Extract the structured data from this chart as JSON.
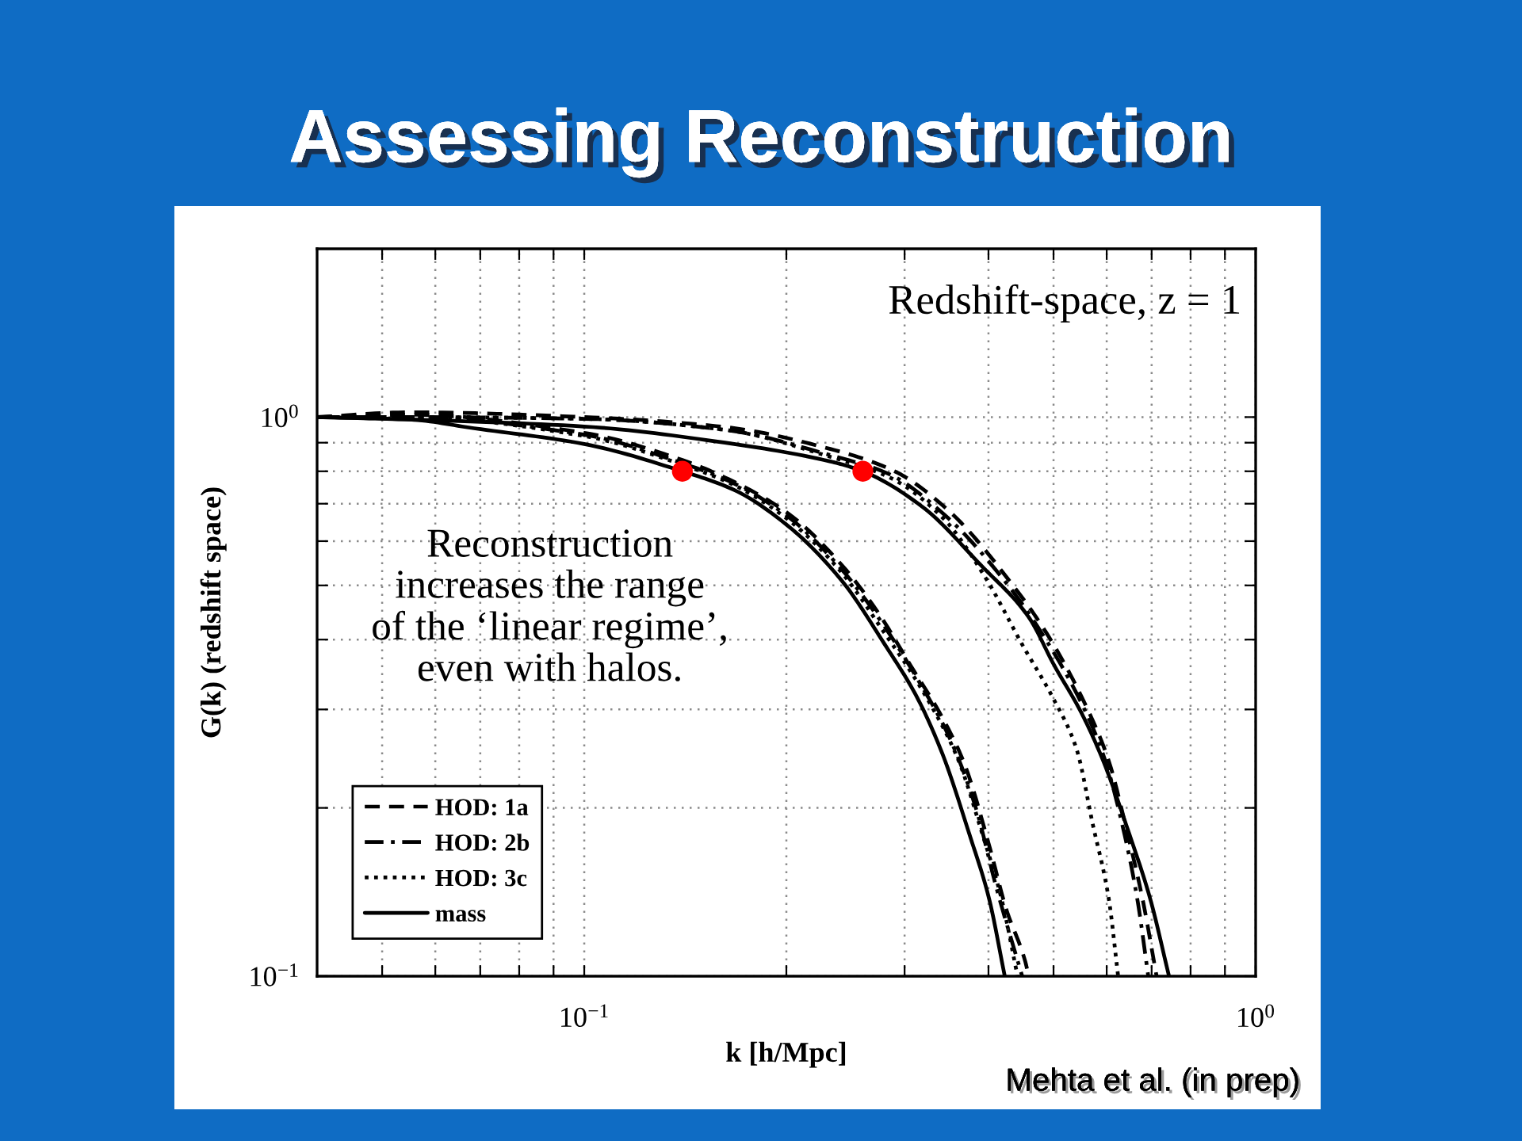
{
  "chart_data": {
    "type": "line",
    "title": "Assessing Reconstruction",
    "xlabel": "k [h/Mpc]",
    "ylabel": "G(k) (redshift space)",
    "log": "xy",
    "xlim": [
      0.04,
      1
    ],
    "ylim": [
      0.1,
      2
    ],
    "xticks": [
      {
        "value": 0.05,
        "label": null
      },
      {
        "value": 0.06,
        "label": null
      },
      {
        "value": 0.07,
        "label": null
      },
      {
        "value": 0.08,
        "label": null
      },
      {
        "value": 0.09,
        "label": null
      },
      {
        "value": 0.1,
        "label": "10$^{−1}$"
      },
      {
        "value": 0.2,
        "label": null
      },
      {
        "value": 0.3,
        "label": null
      },
      {
        "value": 0.4,
        "label": null
      },
      {
        "value": 0.5,
        "label": null
      },
      {
        "value": 0.6,
        "label": null
      },
      {
        "value": 0.7,
        "label": null
      },
      {
        "value": 0.8,
        "label": null
      },
      {
        "value": 0.9,
        "label": null
      },
      {
        "value": 1,
        "label": "10$^{0}$"
      }
    ],
    "yticks": [
      {
        "value": 0.1,
        "label": "10$^{−1}$"
      },
      {
        "value": 0.2,
        "label": null
      },
      {
        "value": 0.3,
        "label": null
      },
      {
        "value": 0.4,
        "label": null
      },
      {
        "value": 0.5,
        "label": null
      },
      {
        "value": 0.6,
        "label": null
      },
      {
        "value": 0.7,
        "label": null
      },
      {
        "value": 0.8,
        "label": null
      },
      {
        "value": 0.9,
        "label": null
      },
      {
        "value": 1,
        "label": "10$^{0}$"
      }
    ],
    "grid": true,
    "legend": "bottom left",
    "series": [
      {
        "name": "HOD: 1a",
        "color": "#000000",
        "line_style": "dashed",
        "x": [
          0.04,
          0.055,
          0.1,
          0.14,
          0.1675,
          0.2017,
          0.2418,
          0.274,
          0.306,
          0.3415,
          0.3687,
          0.4006,
          0.425,
          0.454,
          0.459
        ],
        "values": [
          1.0,
          1.01,
          0.937,
          0.838,
          0.765,
          0.671,
          0.544,
          0.447,
          0.36,
          0.29,
          0.239,
          0.172,
          0.132,
          0.106,
          0.1
        ]
      },
      {
        "name": "HOD: 2b",
        "color": "#000000",
        "line_style": "dashdot",
        "x": [
          0.04,
          0.055,
          0.1,
          0.14,
          0.1675,
          0.2017,
          0.2418,
          0.276,
          0.3145,
          0.351,
          0.383,
          0.411,
          0.449
        ],
        "values": [
          1.0,
          1.0,
          0.93,
          0.827,
          0.76,
          0.662,
          0.534,
          0.433,
          0.338,
          0.265,
          0.2,
          0.144,
          0.1
        ]
      },
      {
        "name": "HOD: 3c",
        "color": "#000000",
        "line_style": "dotted",
        "x": [
          0.04,
          0.055,
          0.1,
          0.14,
          0.1675,
          0.2017,
          0.2418,
          0.277,
          0.323,
          0.361,
          0.392,
          0.418,
          0.442
        ],
        "values": [
          1.0,
          1.0,
          0.925,
          0.822,
          0.755,
          0.654,
          0.527,
          0.419,
          0.316,
          0.243,
          0.179,
          0.138,
          0.1
        ]
      },
      {
        "name": "mass",
        "color": "#000000",
        "line_style": "solid",
        "x": [
          0.04,
          0.055,
          0.0685,
          0.1,
          0.14,
          0.1675,
          0.2017,
          0.2418,
          0.2803,
          0.3128,
          0.3415,
          0.3749,
          0.4006,
          0.423
        ],
        "values": [
          1.0,
          0.99,
          0.955,
          0.895,
          0.8,
          0.74,
          0.637,
          0.51,
          0.392,
          0.316,
          0.25,
          0.179,
          0.138,
          0.1
        ]
      },
      {
        "color": "#000000",
        "line_style": "dashed",
        "x": [
          0.04,
          0.055,
          0.1,
          0.162,
          0.2326,
          0.29,
          0.349,
          0.435,
          0.488,
          0.565,
          0.604,
          0.645,
          0.678,
          0.712
        ],
        "values": [
          1.0,
          1.02,
          1.0,
          0.96,
          0.877,
          0.8,
          0.68,
          0.5,
          0.411,
          0.296,
          0.243,
          0.179,
          0.138,
          0.1
        ]
      },
      {
        "color": "#000000",
        "line_style": "dashdot",
        "x": [
          0.04,
          0.055,
          0.1,
          0.162,
          0.2326,
          0.285,
          0.343,
          0.428,
          0.48,
          0.559,
          0.597,
          0.638,
          0.666,
          0.692
        ],
        "values": [
          1.0,
          1.0,
          0.993,
          0.949,
          0.855,
          0.79,
          0.671,
          0.5,
          0.411,
          0.296,
          0.243,
          0.179,
          0.138,
          0.1
        ]
      },
      {
        "color": "#000000",
        "line_style": "dotted",
        "x": [
          0.04,
          0.055,
          0.1,
          0.162,
          0.2326,
          0.285,
          0.343,
          0.396,
          0.449,
          0.498,
          0.541,
          0.572,
          0.604,
          0.624
        ],
        "values": [
          1.0,
          1.0,
          0.993,
          0.949,
          0.849,
          0.78,
          0.658,
          0.516,
          0.392,
          0.316,
          0.255,
          0.187,
          0.138,
          0.1
        ]
      },
      {
        "color": "#000000",
        "line_style": "solid",
        "x": [
          0.04,
          0.055,
          0.1,
          0.162,
          0.2326,
          0.26,
          0.318,
          0.3894,
          0.459,
          0.501,
          0.55,
          0.591,
          0.649,
          0.696,
          0.743
        ],
        "values": [
          1.0,
          0.99,
          0.962,
          0.9,
          0.833,
          0.8,
          0.693,
          0.544,
          0.439,
          0.36,
          0.296,
          0.245,
          0.179,
          0.138,
          0.1
        ]
      },
      {
        "type": "scatter",
        "color": "#ff0000",
        "marker": "circle",
        "x": [
          0.14,
          0.26
        ],
        "values": [
          0.8,
          0.8
        ]
      }
    ],
    "annotations": [
      "Redshift-space, z = 1",
      "Reconstruction\nincreases the range\nof the ‘linear regime’,\neven with halos.",
      "Mehta et al. (in prep)"
    ]
  }
}
